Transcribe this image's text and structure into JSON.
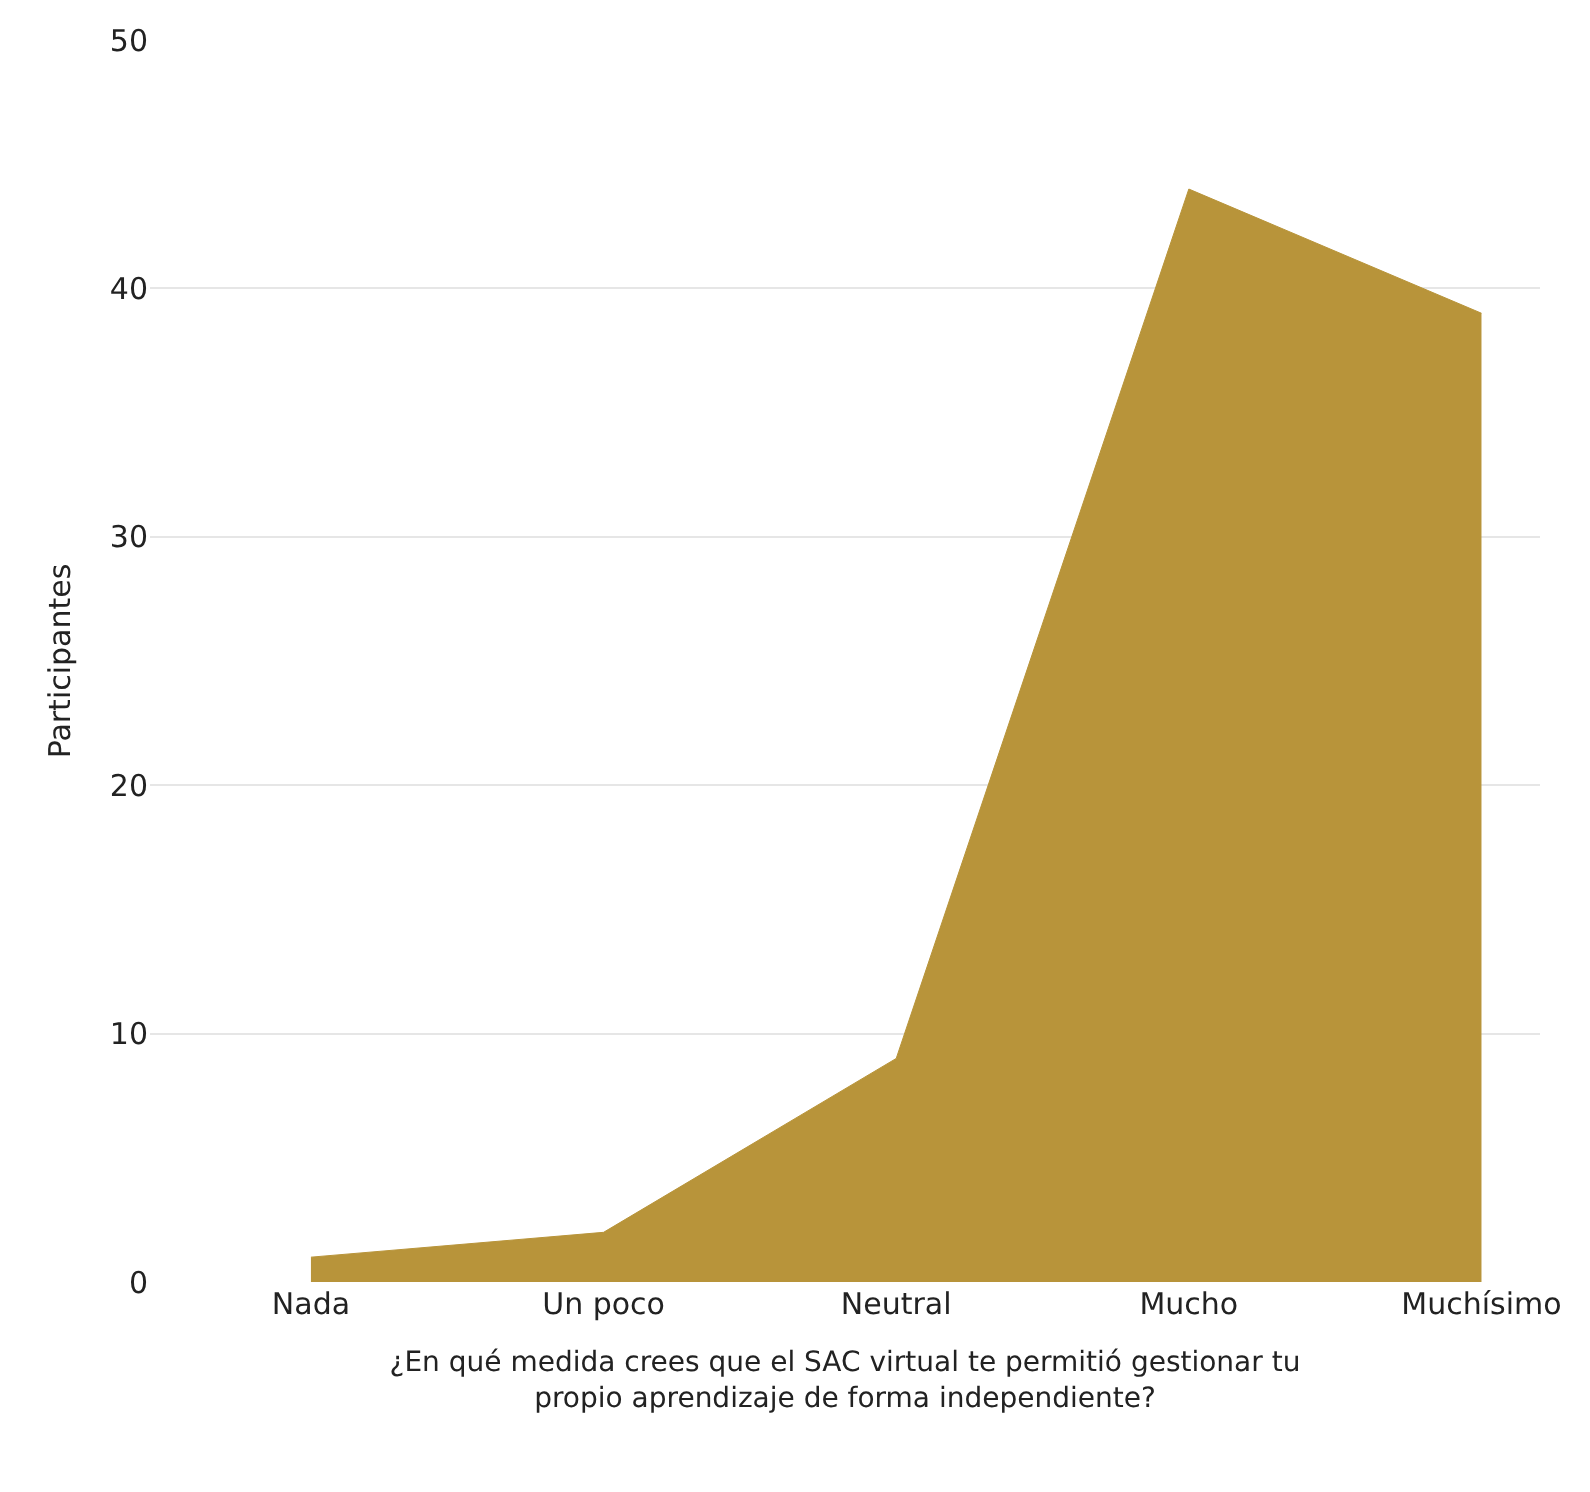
{
  "chart_data": {
    "type": "area",
    "categories": [
      "Nada",
      "Un poco",
      "Neutral",
      "Mucho",
      "Muchísimo"
    ],
    "values": [
      1,
      2,
      9,
      44,
      39
    ],
    "color": "#b8943a",
    "xlabel": "¿En qué medida crees que el SAC virtual te permitió gestionar tu propio aprendizaje de forma independiente?",
    "ylabel": "Participantes",
    "ylim": [
      0,
      50
    ],
    "yticks": [
      0,
      10,
      20,
      30,
      40,
      50
    ],
    "grid": "y"
  }
}
